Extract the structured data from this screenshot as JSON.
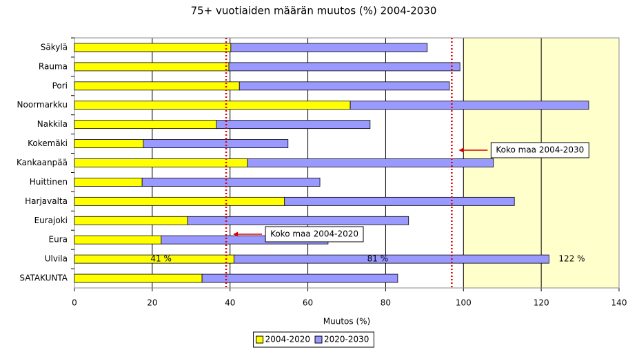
{
  "chart_data": {
    "type": "stacked-barh",
    "title": "75+ vuotiaiden määrän muutos (%) 2004-2030",
    "xlabel": "Muutos (%)",
    "categories": [
      "Säkylä",
      "Rauma",
      "Pori",
      "Noormarkku",
      "Nakkila",
      "Kokemäki",
      "Kankaanpää",
      "Huittinen",
      "Harjavalta",
      "Eurajoki",
      "Eura",
      "Ulvila",
      "SATAKUNTA"
    ],
    "series": [
      {
        "name": "2004-2020",
        "color": "#ffff00",
        "values": [
          40.2,
          39.7,
          42.4,
          70.9,
          36.5,
          17.7,
          44.5,
          17.4,
          54.0,
          29.1,
          22.3,
          41,
          32.8
        ],
        "value_labels": [
          null,
          null,
          null,
          null,
          null,
          null,
          null,
          null,
          null,
          null,
          null,
          "41 %",
          null
        ]
      },
      {
        "name": "2020-2030",
        "color": "#9999ff",
        "values": [
          50.5,
          59.4,
          54.0,
          61.3,
          39.5,
          37.2,
          63.2,
          45.7,
          59.1,
          56.8,
          42.9,
          81,
          50.3
        ],
        "value_labels": [
          null,
          null,
          null,
          null,
          null,
          null,
          null,
          null,
          null,
          null,
          null,
          "81 %",
          null
        ]
      }
    ],
    "total_label": {
      "category": "Ulvila",
      "value": 122,
      "label": "122 %"
    },
    "xlim": [
      0,
      140
    ],
    "xticks": [
      0,
      20,
      40,
      60,
      80,
      100,
      120,
      140
    ],
    "grid": true,
    "highlight_xlim": [
      100,
      140
    ],
    "highlight_color": "#ffffcc",
    "reference_lines": [
      {
        "value": 39,
        "label": "Koko maa 2004-2020",
        "color": "#dd0000"
      },
      {
        "value": 97,
        "label": "Koko maa 2004-2030",
        "color": "#dd0000"
      }
    ],
    "legend": "bottom"
  }
}
